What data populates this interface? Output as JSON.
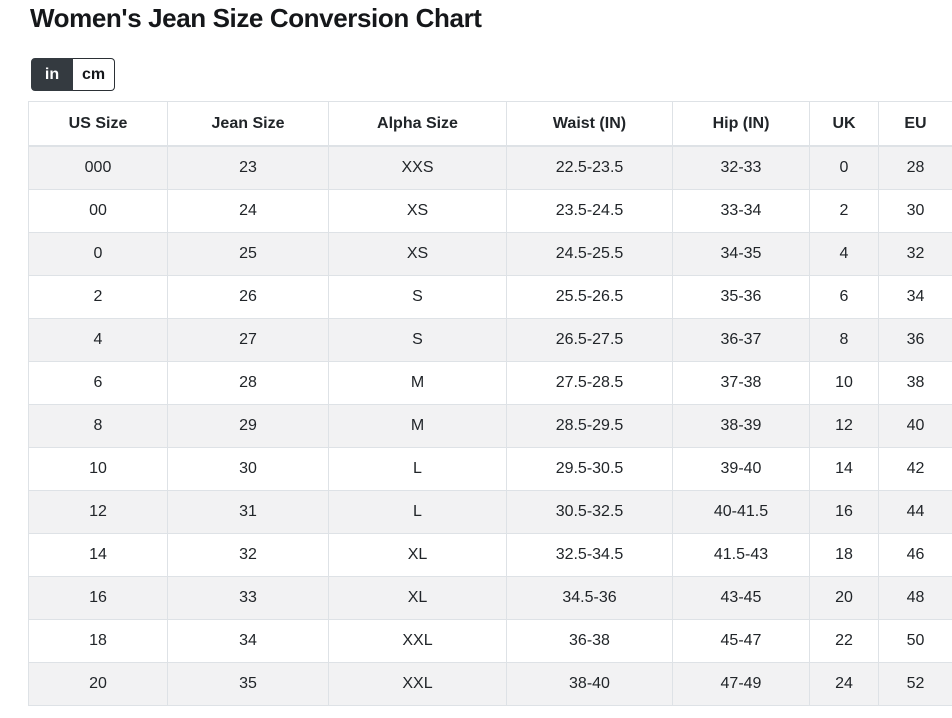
{
  "page": {
    "title": "Women's Jean Size Conversion Chart"
  },
  "unit_toggle": {
    "options": [
      {
        "label": "in",
        "active": true
      },
      {
        "label": "cm",
        "active": false
      }
    ]
  },
  "colors": {
    "toggle_active_bg": "#343a40",
    "toggle_active_text": "#ffffff",
    "table_border": "#dee2e6",
    "row_stripe": "#f2f2f3",
    "text": "#212529"
  },
  "chart_data": {
    "type": "table",
    "title": "Women's Jean Size Conversion Chart",
    "unit": "in",
    "columns": [
      "US Size",
      "Jean Size",
      "Alpha Size",
      "Waist (IN)",
      "Hip (IN)",
      "UK",
      "EU"
    ],
    "rows": [
      [
        "000",
        "23",
        "XXS",
        "22.5-23.5",
        "32-33",
        "0",
        "28"
      ],
      [
        "00",
        "24",
        "XS",
        "23.5-24.5",
        "33-34",
        "2",
        "30"
      ],
      [
        "0",
        "25",
        "XS",
        "24.5-25.5",
        "34-35",
        "4",
        "32"
      ],
      [
        "2",
        "26",
        "S",
        "25.5-26.5",
        "35-36",
        "6",
        "34"
      ],
      [
        "4",
        "27",
        "S",
        "26.5-27.5",
        "36-37",
        "8",
        "36"
      ],
      [
        "6",
        "28",
        "M",
        "27.5-28.5",
        "37-38",
        "10",
        "38"
      ],
      [
        "8",
        "29",
        "M",
        "28.5-29.5",
        "38-39",
        "12",
        "40"
      ],
      [
        "10",
        "30",
        "L",
        "29.5-30.5",
        "39-40",
        "14",
        "42"
      ],
      [
        "12",
        "31",
        "L",
        "30.5-32.5",
        "40-41.5",
        "16",
        "44"
      ],
      [
        "14",
        "32",
        "XL",
        "32.5-34.5",
        "41.5-43",
        "18",
        "46"
      ],
      [
        "16",
        "33",
        "XL",
        "34.5-36",
        "43-45",
        "20",
        "48"
      ],
      [
        "18",
        "34",
        "XXL",
        "36-38",
        "45-47",
        "22",
        "50"
      ],
      [
        "20",
        "35",
        "XXL",
        "38-40",
        "47-49",
        "24",
        "52"
      ]
    ]
  }
}
